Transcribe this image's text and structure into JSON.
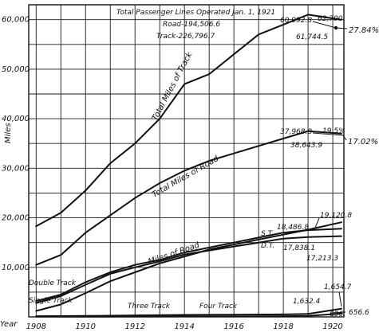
{
  "chart_data": {
    "type": "line",
    "ylabel": "Miles",
    "xlabel": "Year",
    "xlim": [
      1907.7,
      1920.45
    ],
    "ylim": [
      0,
      63000
    ],
    "x_ticks": [
      "1908",
      "1910",
      "1912",
      "1914",
      "1916",
      "1918",
      "1920"
    ],
    "y_ticks": [
      "10,000",
      "20,000",
      "30,000",
      "40,000",
      "50,000",
      "60,000"
    ],
    "title_lines": [
      "Total Passenger Lines Operated Jan. 1, 1921",
      "Road-194,506.6",
      "Track-226,796.7"
    ],
    "series": [
      {
        "name": "Total Miles of Track",
        "x": [
          1908,
          1909,
          1910,
          1911,
          1912,
          1913,
          1914,
          1915,
          1916,
          1917,
          1918,
          1919,
          1920.35
        ],
        "values": [
          18300,
          21000,
          25500,
          31000,
          35000,
          40000,
          47000,
          49000,
          53000,
          57000,
          59000,
          61000,
          60000
        ]
      },
      {
        "name": "Total Miles of Road",
        "x": [
          1908,
          1909,
          1910,
          1911,
          1912,
          1913,
          1914,
          1915,
          1916,
          1917,
          1918,
          1919,
          1920.35
        ],
        "values": [
          10500,
          12500,
          17000,
          20500,
          24000,
          27000,
          29500,
          31500,
          33000,
          34500,
          36000,
          37500,
          37000
        ]
      },
      {
        "name": "Miles of Road",
        "x": [
          1908,
          1909,
          1910,
          1911,
          1912,
          1913,
          1914,
          1915,
          1916,
          1917,
          1918,
          1919,
          1920.35
        ],
        "values": [
          3200,
          4500,
          7000,
          9000,
          10500,
          11500,
          13000,
          14000,
          15000,
          16000,
          17000,
          17500,
          17800
        ]
      },
      {
        "name": "Double Track",
        "x": [
          1908,
          1909,
          1910,
          1911,
          1912,
          1913,
          1914,
          1915,
          1916,
          1917,
          1918,
          1919,
          1920.35
        ],
        "values": [
          2800,
          4200,
          6500,
          8700,
          10000,
          11200,
          12600,
          13400,
          14200,
          15000,
          15800,
          16100,
          16300
        ]
      },
      {
        "name": "Single Track",
        "x": [
          1908,
          1909,
          1910,
          1911,
          1912,
          1913,
          1914,
          1915,
          1916,
          1917,
          1918,
          1919,
          1920.35
        ],
        "values": [
          1200,
          2500,
          4800,
          7200,
          9000,
          10800,
          12200,
          13600,
          14600,
          15600,
          16600,
          17600,
          19100
        ]
      },
      {
        "name": "Three Track",
        "x": [
          1908,
          1910,
          1912,
          1914,
          1916,
          1918,
          1919,
          1920.35
        ],
        "values": [
          150,
          200,
          300,
          400,
          450,
          500,
          600,
          1654
        ]
      },
      {
        "name": "Four Track",
        "x": [
          1908,
          1910,
          1912,
          1914,
          1916,
          1918,
          1919,
          1920.35
        ],
        "values": [
          30,
          40,
          60,
          80,
          100,
          150,
          200,
          666
        ]
      }
    ],
    "labels": {
      "total_track": "Total Miles of Track",
      "total_road": "Total Miles of Road",
      "miles_road": "Miles of Road",
      "double_track": "Double Track",
      "single_track": "Single Track",
      "three_track": "Three Track",
      "four_track": "Four Track",
      "st": "S.T.",
      "dt": "D.T."
    },
    "annotations": {
      "track_top": "60,992.8",
      "track_top_right": "62,700.",
      "track_low": "61,744.5",
      "track_pct": "27.84%",
      "road_top": "37,968.8",
      "road_right": "19.5%",
      "road_low": "38,643.9",
      "road_pct": "17.02%",
      "single_value": "19,120.8",
      "single_alt": "18,486.8",
      "double_value": "17,838.1",
      "double_alt": "17,213.3",
      "three_value": "1,654.7",
      "three_alt": "1,632.4",
      "four_value": "656.6",
      "four_alt": "696."
    }
  }
}
